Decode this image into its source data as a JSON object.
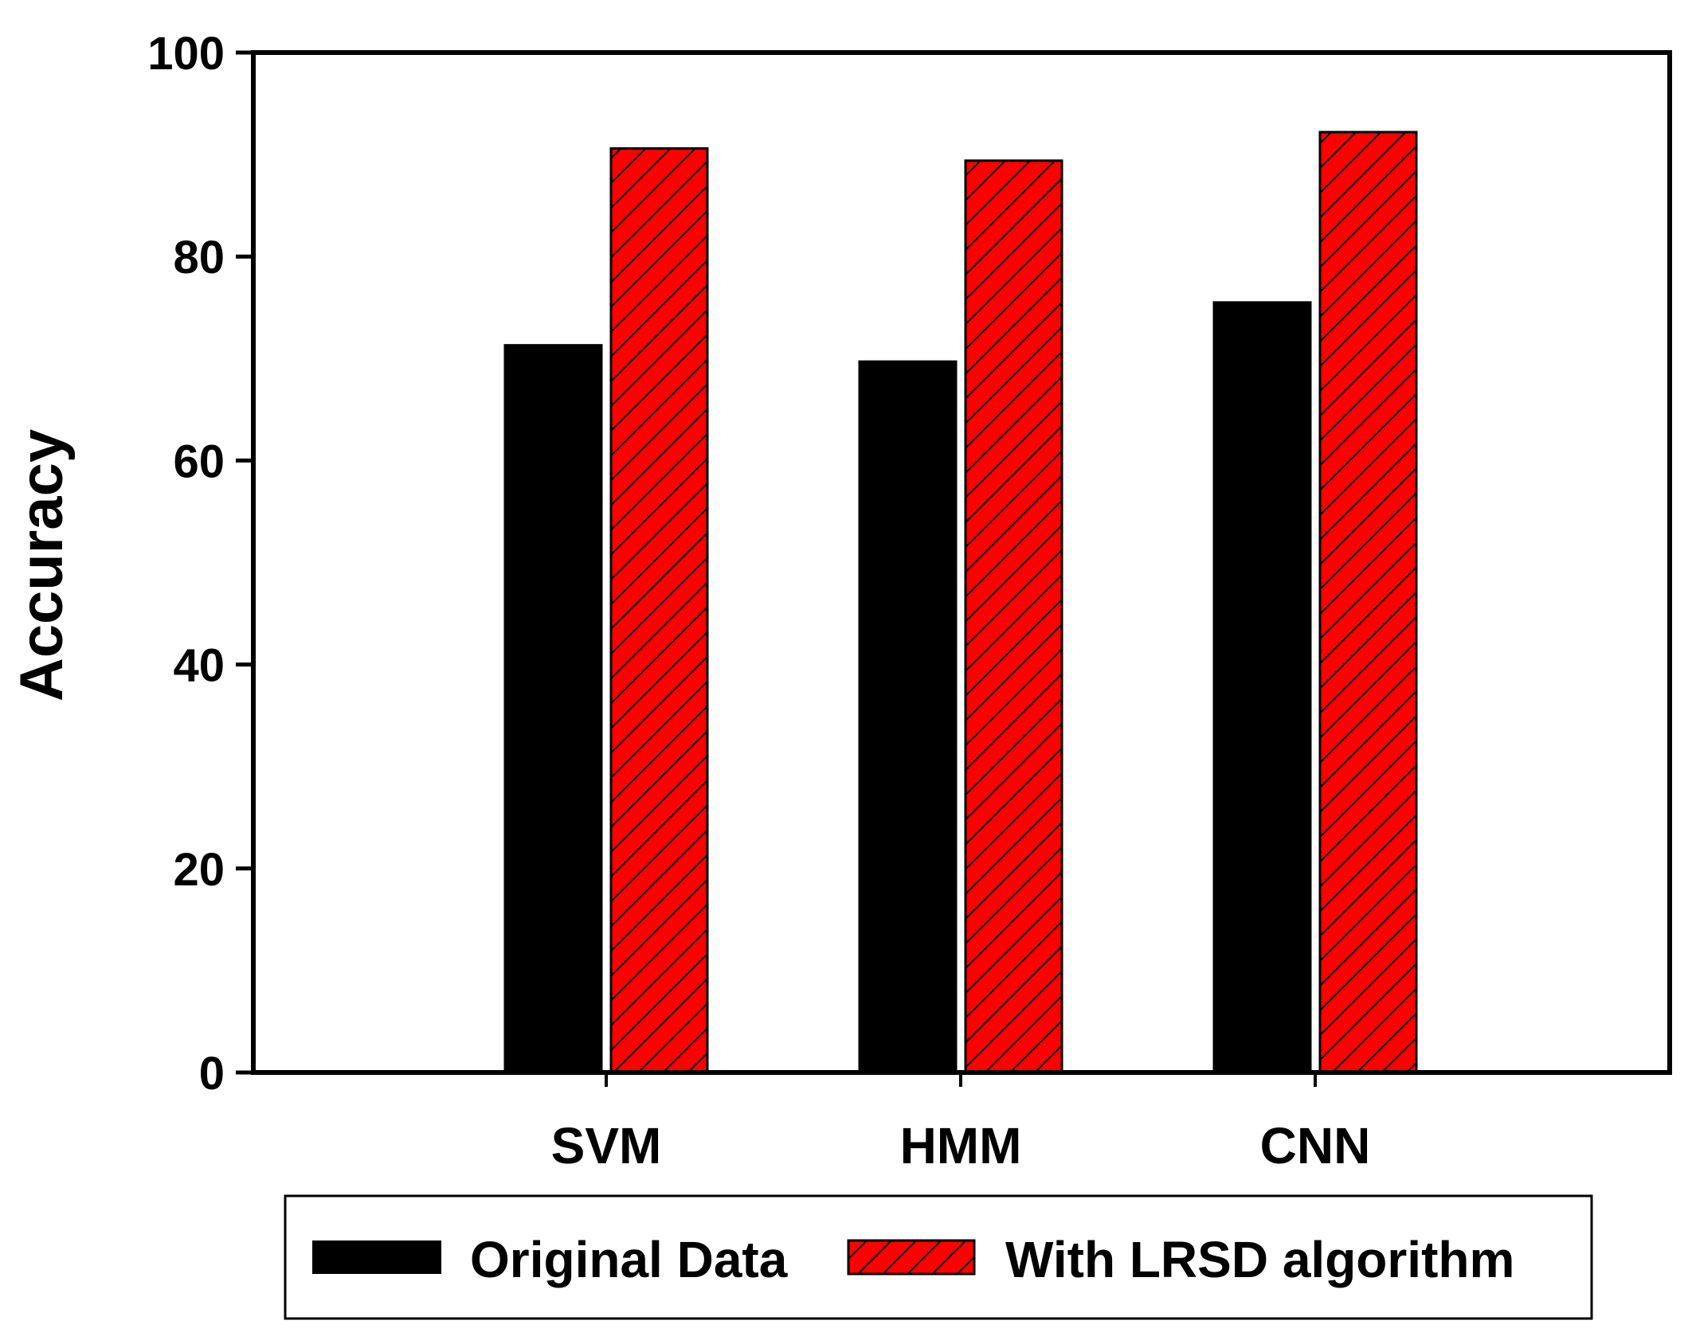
{
  "chart_data": {
    "type": "bar",
    "categories": [
      "SVM",
      "HMM",
      "CNN"
    ],
    "series": [
      {
        "name": "Original Data",
        "values": [
          71.3,
          69.7,
          75.5
        ],
        "color": "#000000",
        "pattern": "solid"
      },
      {
        "name": "With LRSD algorithm",
        "values": [
          90.6,
          89.4,
          92.2
        ],
        "color": "#ff0000",
        "pattern": "diagonal-hatch"
      }
    ],
    "title": "",
    "xlabel": "",
    "ylabel": "Accuracy",
    "ylim": [
      0,
      100
    ],
    "yticks": [
      "0",
      "20",
      "40",
      "60",
      "80",
      "100"
    ],
    "grid": false,
    "legend_position": "bottom"
  }
}
